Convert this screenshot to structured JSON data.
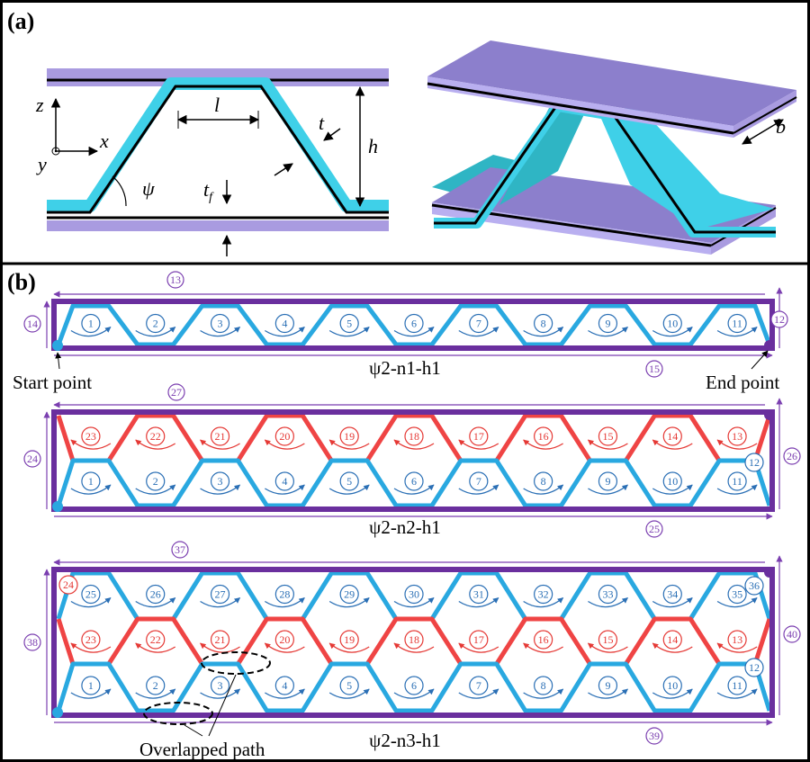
{
  "panel_a": {
    "label": "(a)",
    "z": "z",
    "x": "x",
    "y": "y",
    "l": "l",
    "t": "t",
    "h": "h",
    "psi": "ψ",
    "tf": {
      "main": "t",
      "sub": "f"
    },
    "b": "b"
  },
  "panel_b": {
    "label": "(b)",
    "start": "Start point",
    "end": "End point",
    "overlap": "Overlapped path",
    "rows": [
      {
        "title": "ψ2-n1-h1",
        "bands": [
          {
            "color": "blue",
            "cells": [
              1,
              2,
              3,
              4,
              5,
              6,
              7,
              8,
              9,
              10,
              11
            ]
          }
        ],
        "inner": [],
        "outer": {
          "top": 13,
          "left": 14,
          "right": 12,
          "bottom": 15
        }
      },
      {
        "title": "ψ2-n2-h1",
        "bands": [
          {
            "color": "red",
            "cells": [
              23,
              22,
              21,
              20,
              19,
              18,
              17,
              16,
              15,
              14,
              13
            ]
          },
          {
            "color": "blue",
            "cells": [
              1,
              2,
              3,
              4,
              5,
              6,
              7,
              8,
              9,
              10,
              11
            ]
          }
        ],
        "inner": [
          {
            "value": 12,
            "color": "blue"
          }
        ],
        "outer": {
          "top": 27,
          "left": 24,
          "right": 26,
          "bottom": 25
        }
      },
      {
        "title": "ψ2-n3-h1",
        "bands": [
          {
            "color": "blue",
            "cells": [
              25,
              26,
              27,
              28,
              29,
              30,
              31,
              32,
              33,
              34,
              35
            ]
          },
          {
            "color": "red",
            "cells": [
              23,
              22,
              21,
              20,
              19,
              18,
              17,
              16,
              15,
              14,
              13
            ]
          },
          {
            "color": "blue",
            "cells": [
              1,
              2,
              3,
              4,
              5,
              6,
              7,
              8,
              9,
              10,
              11
            ]
          }
        ],
        "inner": [
          {
            "value": 36,
            "color": "blue"
          },
          {
            "value": 24,
            "color": "red"
          },
          {
            "value": 12,
            "color": "blue"
          }
        ],
        "outer": {
          "top": 37,
          "left": 38,
          "right": 40,
          "bottom": 39
        }
      }
    ]
  }
}
